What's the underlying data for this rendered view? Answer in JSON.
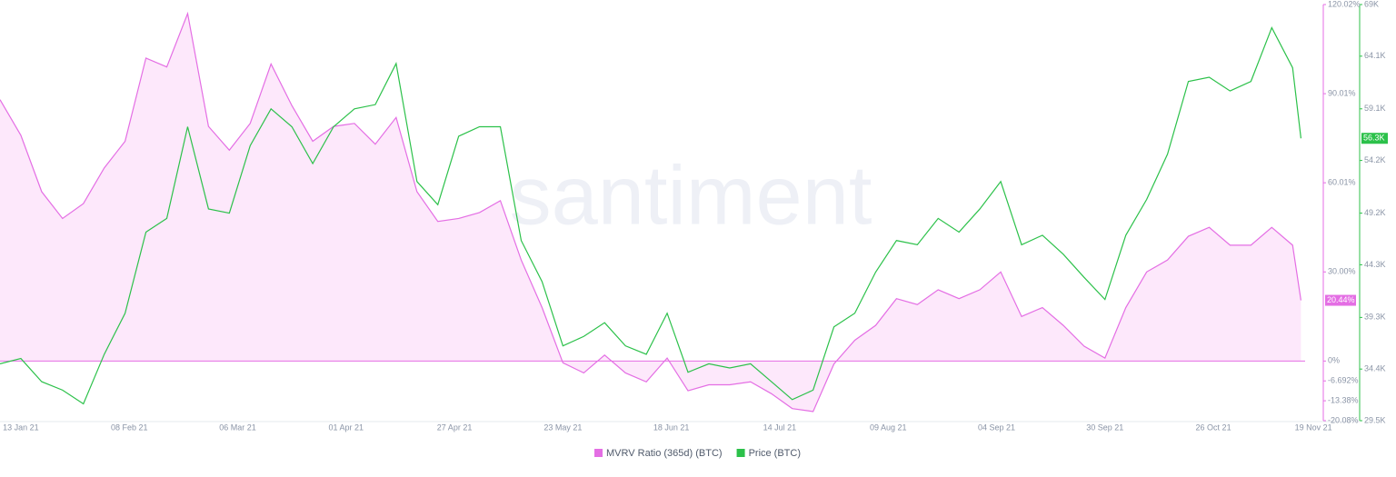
{
  "chart_data": {
    "type": "line",
    "watermark": "santiment",
    "x": [
      "2021-01-08",
      "2021-01-13",
      "2021-01-18",
      "2021-01-23",
      "2021-01-28",
      "2021-02-02",
      "2021-02-07",
      "2021-02-12",
      "2021-02-17",
      "2021-02-22",
      "2021-02-27",
      "2021-03-04",
      "2021-03-09",
      "2021-03-14",
      "2021-03-19",
      "2021-03-24",
      "2021-03-29",
      "2021-04-03",
      "2021-04-08",
      "2021-04-13",
      "2021-04-18",
      "2021-04-23",
      "2021-04-28",
      "2021-05-03",
      "2021-05-08",
      "2021-05-13",
      "2021-05-18",
      "2021-05-23",
      "2021-05-28",
      "2021-06-02",
      "2021-06-07",
      "2021-06-12",
      "2021-06-17",
      "2021-06-22",
      "2021-06-27",
      "2021-07-02",
      "2021-07-07",
      "2021-07-12",
      "2021-07-17",
      "2021-07-22",
      "2021-07-27",
      "2021-08-01",
      "2021-08-06",
      "2021-08-11",
      "2021-08-16",
      "2021-08-21",
      "2021-08-26",
      "2021-08-31",
      "2021-09-05",
      "2021-09-10",
      "2021-09-15",
      "2021-09-20",
      "2021-09-25",
      "2021-09-30",
      "2021-10-05",
      "2021-10-10",
      "2021-10-15",
      "2021-10-20",
      "2021-10-25",
      "2021-10-30",
      "2021-11-04",
      "2021-11-09",
      "2021-11-14",
      "2021-11-16"
    ],
    "xlim": [
      "2021-01-08",
      "2021-11-17"
    ],
    "xticks": [
      {
        "value": "2021-01-13",
        "label": "13 Jan 21"
      },
      {
        "value": "2021-02-08",
        "label": "08 Feb 21"
      },
      {
        "value": "2021-03-06",
        "label": "06 Mar 21"
      },
      {
        "value": "2021-04-01",
        "label": "01 Apr 21"
      },
      {
        "value": "2021-04-27",
        "label": "27 Apr 21"
      },
      {
        "value": "2021-05-23",
        "label": "23 May 21"
      },
      {
        "value": "2021-06-18",
        "label": "18 Jun 21"
      },
      {
        "value": "2021-07-14",
        "label": "14 Jul 21"
      },
      {
        "value": "2021-08-09",
        "label": "09 Aug 21"
      },
      {
        "value": "2021-09-04",
        "label": "04 Sep 21"
      },
      {
        "value": "2021-09-30",
        "label": "30 Sep 21"
      },
      {
        "value": "2021-10-26",
        "label": "26 Oct 21"
      },
      {
        "value": "2021-11-19",
        "label": "19 Nov 21"
      }
    ],
    "ylim": [
      -20.08,
      120.02
    ],
    "yticks": [
      {
        "value": 120.02,
        "label": "120.02%"
      },
      {
        "value": 90.01,
        "label": "90.01%"
      },
      {
        "value": 60.01,
        "label": "60.01%"
      },
      {
        "value": 30,
        "label": "30.00%"
      },
      {
        "value": 0,
        "label": "0%"
      },
      {
        "value": -6.692,
        "label": "-6.692%"
      },
      {
        "value": -13.38,
        "label": "-13.38%"
      },
      {
        "value": -20.08,
        "label": "-20.08%"
      }
    ],
    "y2lim": [
      29500,
      69000
    ],
    "y2ticks": [
      {
        "value": 69000,
        "label": "69K"
      },
      {
        "value": 64100,
        "label": "64.1K"
      },
      {
        "value": 59100,
        "label": "59.1K"
      },
      {
        "value": 54200,
        "label": "54.2K"
      },
      {
        "value": 49200,
        "label": "49.2K"
      },
      {
        "value": 44300,
        "label": "44.3K"
      },
      {
        "value": 39300,
        "label": "39.3K"
      },
      {
        "value": 34400,
        "label": "34.4K"
      },
      {
        "value": 29500,
        "label": "29.5K"
      }
    ],
    "series": [
      {
        "name": "MVRV Ratio (365d) (BTC)",
        "color": "#e46ee4",
        "fill": "#fde8fb",
        "axis": "y",
        "values": [
          88,
          76,
          57,
          48,
          53,
          65,
          74,
          102,
          99,
          117,
          79,
          71,
          80,
          100,
          86,
          74,
          79,
          80,
          73,
          82,
          57,
          47,
          48,
          50,
          54,
          34,
          18,
          -0.6,
          -4,
          2,
          -4,
          -7,
          1,
          -10,
          -8,
          -8,
          -7,
          -11,
          -16,
          -17,
          -1,
          7,
          12,
          21,
          19,
          24,
          21,
          24,
          30,
          15,
          18,
          12,
          5,
          1,
          18,
          30,
          34,
          42,
          45,
          39,
          39,
          45,
          39,
          20.44
        ]
      },
      {
        "name": "Price (BTC)",
        "color": "#2cc14a",
        "axis": "y2",
        "values": [
          34900,
          35400,
          33200,
          32400,
          31100,
          35800,
          39700,
          47400,
          48700,
          57400,
          49600,
          49200,
          55600,
          59100,
          57400,
          53900,
          57400,
          59100,
          59500,
          63400,
          52200,
          50000,
          56500,
          57400,
          57400,
          46600,
          42700,
          36600,
          37500,
          38800,
          36600,
          35800,
          39700,
          34100,
          34900,
          34500,
          34900,
          33200,
          31500,
          32400,
          38400,
          39700,
          43600,
          46600,
          46200,
          48700,
          47400,
          49600,
          52200,
          46200,
          47100,
          45300,
          43100,
          41000,
          47100,
          50500,
          54800,
          61700,
          62100,
          60800,
          61700,
          66800,
          63000,
          56300
        ]
      }
    ],
    "annotations": [
      {
        "text": "56.3K",
        "value": 56300,
        "axis": "y2"
      },
      {
        "text": "20.44%",
        "value": 20.44,
        "axis": "y"
      }
    ]
  }
}
